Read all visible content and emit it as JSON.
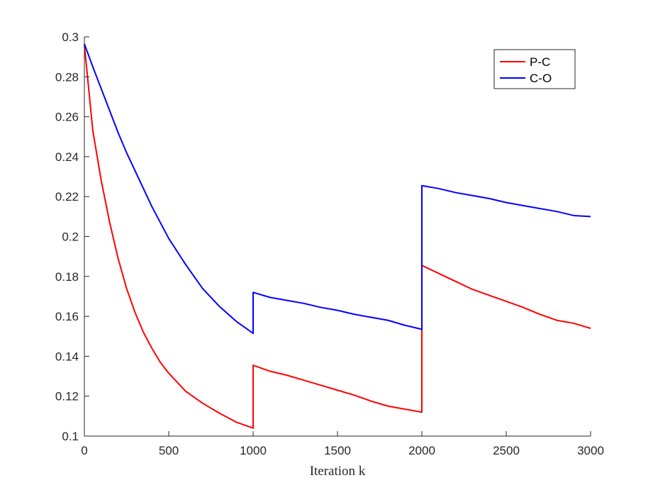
{
  "chart_data": {
    "type": "line",
    "title": "",
    "xlabel": "Iteration k",
    "ylabel": "",
    "xlim": [
      0,
      3000
    ],
    "ylim": [
      0.1,
      0.3
    ],
    "xticks": [
      0,
      500,
      1000,
      1500,
      2000,
      2500,
      3000
    ],
    "yticks": [
      0.1,
      0.12,
      0.14,
      0.16,
      0.18,
      0.2,
      0.22,
      0.24,
      0.26,
      0.28,
      0.3
    ],
    "xtick_labels": [
      "0",
      "500",
      "1000",
      "1500",
      "2000",
      "2500",
      "3000"
    ],
    "ytick_labels": [
      "0.1",
      "0.12",
      "0.14",
      "0.16",
      "0.18",
      "0.2",
      "0.22",
      "0.24",
      "0.26",
      "0.28",
      "0.3"
    ],
    "grid": false,
    "legend": {
      "position": "top-right"
    },
    "series": [
      {
        "name": "P-C",
        "color": "#ff0000",
        "x": [
          0,
          50,
          100,
          150,
          200,
          250,
          300,
          350,
          400,
          450,
          500,
          600,
          700,
          800,
          900,
          1000,
          1000,
          1100,
          1200,
          1300,
          1400,
          1500,
          1600,
          1700,
          1800,
          1900,
          2000,
          2000,
          2100,
          2200,
          2300,
          2400,
          2500,
          2600,
          2700,
          2800,
          2900,
          3000
        ],
        "y": [
          0.296,
          0.253,
          0.228,
          0.207,
          0.189,
          0.174,
          0.162,
          0.152,
          0.144,
          0.137,
          0.1315,
          0.1225,
          0.1165,
          0.1115,
          0.107,
          0.104,
          0.1355,
          0.1325,
          0.1305,
          0.128,
          0.1255,
          0.123,
          0.1205,
          0.1175,
          0.115,
          0.1135,
          0.112,
          0.1855,
          0.1815,
          0.1775,
          0.1735,
          0.1705,
          0.1675,
          0.1645,
          0.161,
          0.158,
          0.1565,
          0.154
        ]
      },
      {
        "name": "C-O",
        "color": "#0000ff",
        "x": [
          0,
          50,
          100,
          150,
          200,
          250,
          300,
          350,
          400,
          450,
          500,
          600,
          700,
          800,
          900,
          1000,
          1000,
          1100,
          1200,
          1300,
          1400,
          1500,
          1600,
          1700,
          1800,
          1900,
          2000,
          2000,
          2100,
          2200,
          2300,
          2400,
          2500,
          2600,
          2700,
          2800,
          2900,
          3000
        ],
        "y": [
          0.2965,
          0.285,
          0.274,
          0.263,
          0.252,
          0.242,
          0.233,
          0.224,
          0.215,
          0.207,
          0.199,
          0.186,
          0.174,
          0.165,
          0.1575,
          0.1515,
          0.172,
          0.1695,
          0.168,
          0.1665,
          0.1645,
          0.163,
          0.161,
          0.1595,
          0.158,
          0.1555,
          0.1535,
          0.2255,
          0.224,
          0.222,
          0.2205,
          0.219,
          0.217,
          0.2155,
          0.214,
          0.2125,
          0.2105,
          0.21
        ]
      }
    ]
  }
}
